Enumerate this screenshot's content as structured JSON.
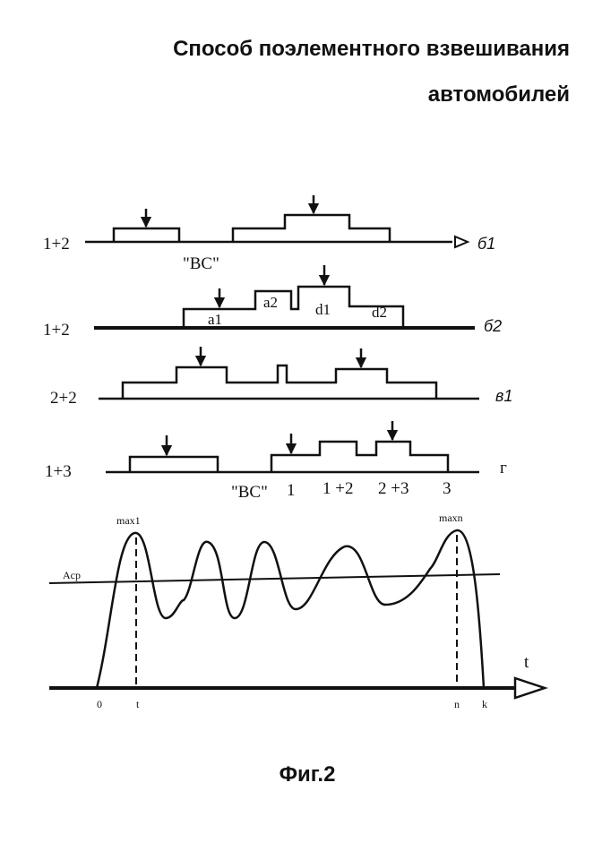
{
  "header": {
    "title": [
      "Способ поэлементного взвешивания",
      "автомобилей"
    ]
  },
  "rows": [
    {
      "label": "1+2",
      "tag": "б1",
      "notes": [
        "\"ВС\""
      ]
    },
    {
      "label": "1+2",
      "tag": "б2",
      "notes": [
        "a1",
        "a2",
        "d1",
        "d2"
      ]
    },
    {
      "label": "2+2",
      "tag": "в1",
      "notes": []
    },
    {
      "label": "1+3",
      "tag": "г",
      "notes": [
        "\"ВС\"",
        "1",
        "1 +2",
        "2 +3",
        "3"
      ]
    }
  ],
  "graph": {
    "peaks": [
      "max1",
      "maxn"
    ],
    "mean": "Aср",
    "axis": "t",
    "ticks": [
      "0",
      "t",
      "n",
      "k"
    ]
  },
  "caption": "Фиг.2"
}
